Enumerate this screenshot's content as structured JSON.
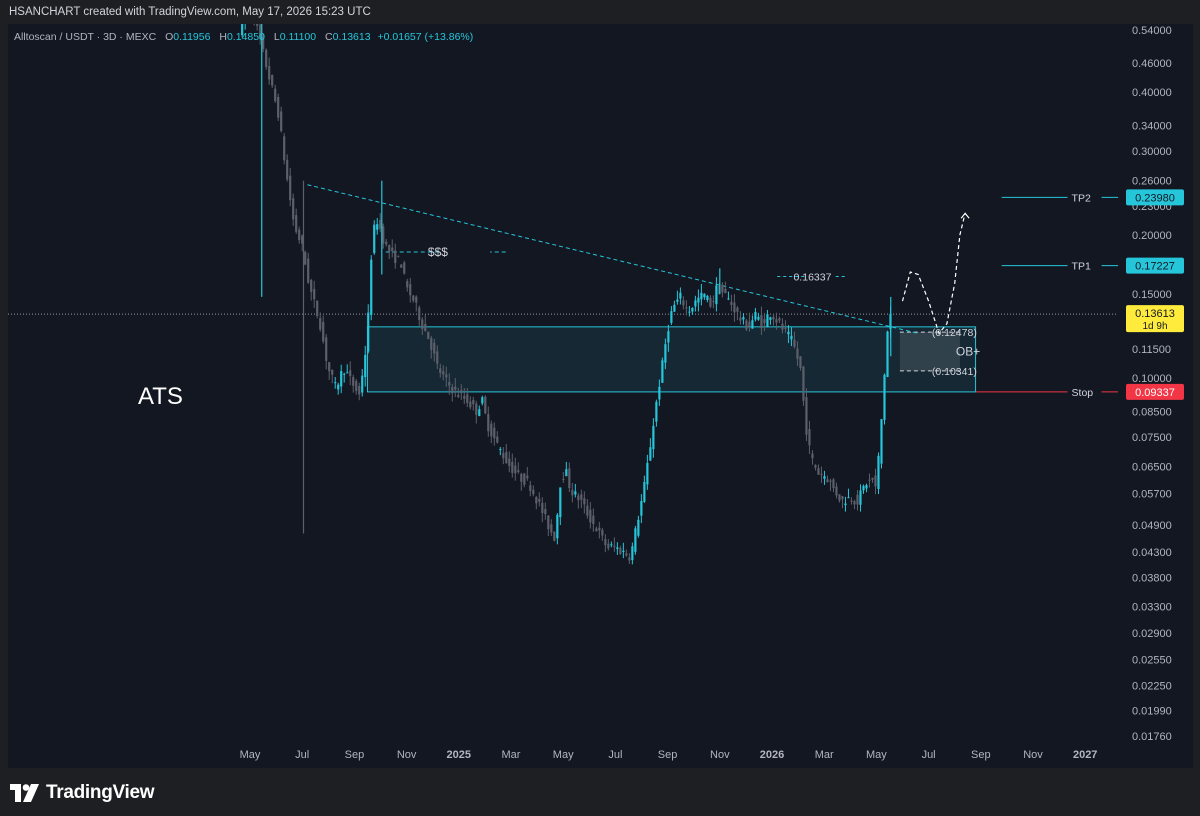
{
  "header": {
    "credit": "HSANCHART created with TradingView.com, May 17, 2026 15:23 UTC"
  },
  "legend": {
    "symbol": "Alltoscan / USDT · 3D · MEXC",
    "open_label": "O",
    "open": "0.11956",
    "high_label": "H",
    "high": "0.14850",
    "low_label": "L",
    "low": "0.11100",
    "close_label": "C",
    "close": "0.13613",
    "change": "+0.01657 (+13.86%)"
  },
  "footer": {
    "brand": "TradingView",
    "logo_icon": "tradingview-logo-icon"
  },
  "colors": {
    "background": "#131722",
    "accent_cyan": "#26c6da",
    "bear_gray": "#5d606b",
    "stop_red": "#f23645",
    "price_yellow": "#ffeb3b"
  },
  "chart_data": {
    "type": "candlestick",
    "title": "ATS",
    "scale": "log",
    "y_ticks": [
      "0.54000",
      "0.46000",
      "0.40000",
      "0.34000",
      "0.30000",
      "0.26000",
      "0.23000",
      "0.20000",
      "0.15000",
      "0.11500",
      "0.10000",
      "0.08500",
      "0.07500",
      "0.06500",
      "0.05700",
      "0.04900",
      "0.04300",
      "0.03800",
      "0.03300",
      "0.02900",
      "0.02550",
      "0.02250",
      "0.01990",
      "0.01760"
    ],
    "x_ticks": [
      {
        "label": "May",
        "t": 0,
        "bold": false
      },
      {
        "label": "Jul",
        "t": 2,
        "bold": false
      },
      {
        "label": "Sep",
        "t": 4,
        "bold": false
      },
      {
        "label": "Nov",
        "t": 6,
        "bold": false
      },
      {
        "label": "2025",
        "t": 8,
        "bold": true
      },
      {
        "label": "Mar",
        "t": 10,
        "bold": false
      },
      {
        "label": "May",
        "t": 12,
        "bold": false
      },
      {
        "label": "Jul",
        "t": 14,
        "bold": false
      },
      {
        "label": "Sep",
        "t": 16,
        "bold": false
      },
      {
        "label": "Nov",
        "t": 18,
        "bold": false
      },
      {
        "label": "2026",
        "t": 20,
        "bold": true
      },
      {
        "label": "Mar",
        "t": 22,
        "bold": false
      },
      {
        "label": "May",
        "t": 24,
        "bold": false
      },
      {
        "label": "Jul",
        "t": 26,
        "bold": false
      },
      {
        "label": "Sep",
        "t": 28,
        "bold": false
      },
      {
        "label": "Nov",
        "t": 30,
        "bold": false
      },
      {
        "label": "2027",
        "t": 32,
        "bold": true
      }
    ],
    "price_path": [
      [
        -0.3,
        0.54
      ],
      [
        0.2,
        0.6
      ],
      [
        0.4,
        0.54
      ],
      [
        0.8,
        0.44
      ],
      [
        1.2,
        0.36
      ],
      [
        1.5,
        0.27
      ],
      [
        1.8,
        0.21
      ],
      [
        2.1,
        0.19
      ],
      [
        2.4,
        0.155
      ],
      [
        2.8,
        0.13
      ],
      [
        3.1,
        0.105
      ],
      [
        3.4,
        0.095
      ],
      [
        3.7,
        0.105
      ],
      [
        4.0,
        0.098
      ],
      [
        4.3,
        0.092
      ],
      [
        4.6,
        0.12
      ],
      [
        4.8,
        0.2
      ],
      [
        5.0,
        0.215
      ],
      [
        5.3,
        0.19
      ],
      [
        5.6,
        0.18
      ],
      [
        5.9,
        0.175
      ],
      [
        6.1,
        0.155
      ],
      [
        6.4,
        0.145
      ],
      [
        6.7,
        0.13
      ],
      [
        7.0,
        0.12
      ],
      [
        7.3,
        0.105
      ],
      [
        7.7,
        0.097
      ],
      [
        8.0,
        0.093
      ],
      [
        8.4,
        0.09
      ],
      [
        8.8,
        0.085
      ],
      [
        9.0,
        0.09
      ],
      [
        9.2,
        0.08
      ],
      [
        9.6,
        0.072
      ],
      [
        10.0,
        0.066
      ],
      [
        10.4,
        0.062
      ],
      [
        10.8,
        0.06
      ],
      [
        11.2,
        0.054
      ],
      [
        11.6,
        0.048
      ],
      [
        11.8,
        0.046
      ],
      [
        12.0,
        0.06
      ],
      [
        12.2,
        0.064
      ],
      [
        12.4,
        0.058
      ],
      [
        12.8,
        0.055
      ],
      [
        13.1,
        0.051
      ],
      [
        13.4,
        0.048
      ],
      [
        13.8,
        0.044
      ],
      [
        14.1,
        0.044
      ],
      [
        14.4,
        0.043
      ],
      [
        14.7,
        0.042
      ],
      [
        14.9,
        0.048
      ],
      [
        15.2,
        0.058
      ],
      [
        15.5,
        0.075
      ],
      [
        15.7,
        0.09
      ],
      [
        15.9,
        0.105
      ],
      [
        16.1,
        0.125
      ],
      [
        16.3,
        0.14
      ],
      [
        16.6,
        0.148
      ],
      [
        16.9,
        0.138
      ],
      [
        17.2,
        0.145
      ],
      [
        17.5,
        0.15
      ],
      [
        17.8,
        0.142
      ],
      [
        18.0,
        0.155
      ],
      [
        18.3,
        0.15
      ],
      [
        18.6,
        0.142
      ],
      [
        18.9,
        0.133
      ],
      [
        19.2,
        0.128
      ],
      [
        19.5,
        0.136
      ],
      [
        19.8,
        0.128
      ],
      [
        20.0,
        0.138
      ],
      [
        20.3,
        0.132
      ],
      [
        20.6,
        0.125
      ],
      [
        20.9,
        0.119
      ],
      [
        21.2,
        0.105
      ],
      [
        21.4,
        0.08
      ],
      [
        21.6,
        0.068
      ],
      [
        21.9,
        0.063
      ],
      [
        22.2,
        0.062
      ],
      [
        22.5,
        0.058
      ],
      [
        22.8,
        0.055
      ],
      [
        23.1,
        0.056
      ],
      [
        23.4,
        0.055
      ],
      [
        23.7,
        0.06
      ],
      [
        24.0,
        0.061
      ],
      [
        24.1,
        0.058
      ],
      [
        24.3,
        0.08
      ],
      [
        24.5,
        0.118
      ],
      [
        24.6,
        0.136
      ]
    ],
    "extreme_wicks": [
      {
        "t": 0.45,
        "high": 0.6,
        "low": 0.148
      },
      {
        "t": 2.05,
        "high": 0.26,
        "low": 0.047
      },
      {
        "t": 5.05,
        "high": 0.26,
        "low": 0.165
      },
      {
        "t": 18.0,
        "high": 0.17,
        "low": 0.15
      },
      {
        "t": 24.55,
        "high": 0.148,
        "low": 0.111
      }
    ],
    "last_price": 0.13613,
    "countdown": "1d 9h",
    "levels": [
      {
        "name": "TP2",
        "value": 0.2398,
        "label": "0.23980"
      },
      {
        "name": "TP1",
        "value": 0.17227,
        "label": "0.17227"
      },
      {
        "name": "Stop",
        "value": 0.09337,
        "label": "0.09337"
      }
    ],
    "last_price_label": "0.13613",
    "demand_zone": {
      "t0": 4.5,
      "t1": 27.8,
      "top": 0.128,
      "bottom": 0.09337
    },
    "order_block": {
      "t0": 24.9,
      "t1": 27.2,
      "top": 0.12478,
      "bottom": 0.10341,
      "label": "OB+",
      "top_label": "(0.12478)",
      "bottom_label": "(0.10341)"
    },
    "trendline": {
      "t0": 2.2,
      "p0": 0.255,
      "t1": 25.6,
      "p1": 0.124
    },
    "liquidity": {
      "t0": 5.2,
      "t1": 9.2,
      "value": 0.184,
      "label": "$$$"
    },
    "high_marker": {
      "t0": 20.2,
      "t1": 22.9,
      "value": 0.16337,
      "label": "0.16337"
    },
    "projection_path": [
      [
        25.0,
        0.145
      ],
      [
        25.3,
        0.167
      ],
      [
        25.6,
        0.165
      ],
      [
        26.0,
        0.145
      ],
      [
        26.4,
        0.124
      ],
      [
        26.7,
        0.13
      ],
      [
        27.0,
        0.158
      ],
      [
        27.2,
        0.2
      ],
      [
        27.4,
        0.222
      ]
    ],
    "annotation": "ATS"
  }
}
